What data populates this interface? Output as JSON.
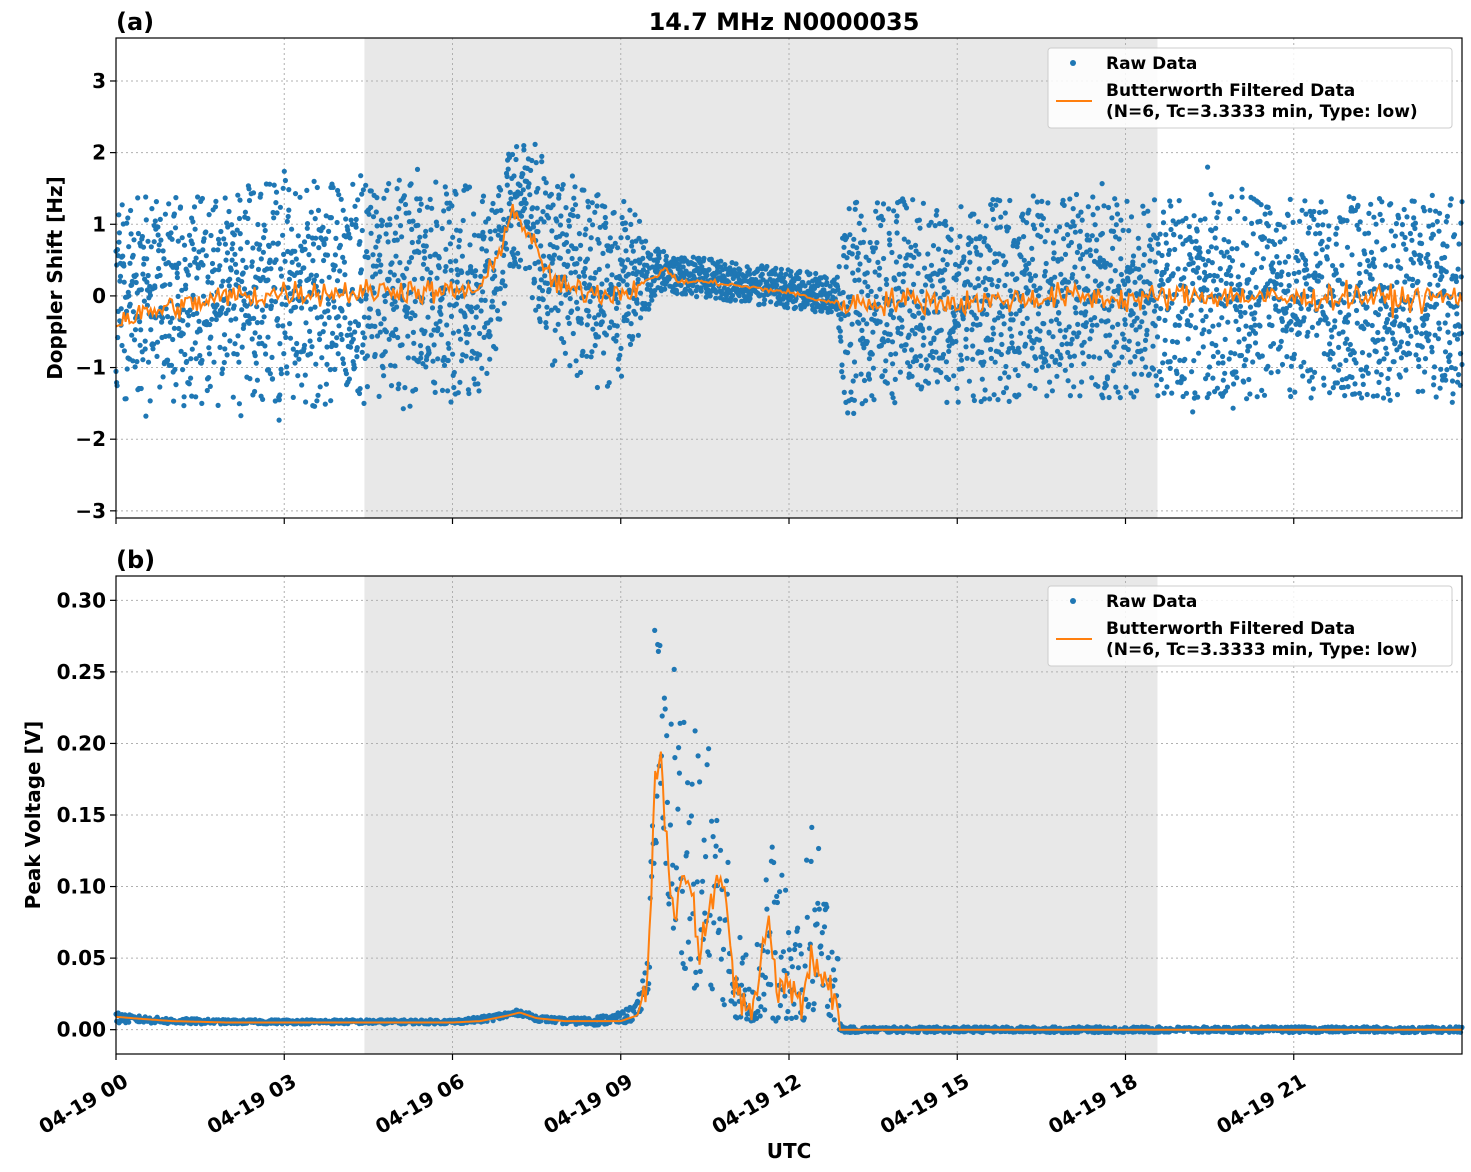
{
  "figure": {
    "title": "14.7 MHz N0000035",
    "xlabel": "UTC",
    "x_tick_labels": [
      "04-19 00",
      "04-19 03",
      "04-19 06",
      "04-19 09",
      "04-19 12",
      "04-19 15",
      "04-19 18",
      "04-19 21"
    ],
    "colors": {
      "raw": "#1f77b4",
      "filtered": "#ff7f0e",
      "shade": "#e8e8e8",
      "grid": "#b0b0b0"
    }
  },
  "chart_data": [
    {
      "type": "scatter",
      "panel_label": "(a)",
      "ylabel": "Doppler Shift [Hz]",
      "xlim": [
        "04-19 00:00",
        "04-20 00:00"
      ],
      "ylim": [
        -3.1,
        3.6
      ],
      "y_ticks": [
        -3,
        -2,
        -1,
        0,
        1,
        2,
        3
      ],
      "y_tick_labels": [
        "−3",
        "−2",
        "−1",
        "0",
        "1",
        "2",
        "3"
      ],
      "grid": true,
      "legend_position": "top-right",
      "shaded_interval_utc_hours": [
        4.43,
        18.57
      ],
      "series": [
        {
          "name": "Raw Data",
          "style": "points",
          "x_hours": [
            0,
            0.5,
            1,
            1.5,
            2,
            2.5,
            3,
            3.5,
            4,
            4.5,
            5,
            5.5,
            6,
            6.5,
            6.8,
            7,
            7.2,
            7.5,
            7.8,
            8,
            8.5,
            9,
            9.3,
            9.6,
            9.8,
            10,
            10.5,
            11,
            11.5,
            12,
            12.5,
            12.85,
            13,
            13.5,
            14,
            15,
            16,
            17,
            18,
            19,
            20,
            21,
            22,
            23,
            24
          ],
          "y_center": [
            0,
            -0.05,
            -0.1,
            -0.05,
            0,
            0,
            0.05,
            0.05,
            0,
            0.05,
            0.1,
            0.05,
            0.05,
            0.1,
            0.4,
            1.1,
            1.3,
            0.9,
            0.3,
            0.2,
            0.05,
            0.1,
            0.2,
            0.3,
            0.35,
            0.3,
            0.25,
            0.2,
            0.15,
            0.1,
            0.05,
            0,
            -0.1,
            -0.1,
            -0.05,
            -0.1,
            -0.05,
            0,
            -0.05,
            0,
            0,
            -0.05,
            0,
            -0.05,
            0
          ],
          "y_spread": [
            2.6,
            2.6,
            2.7,
            2.8,
            2.8,
            2.8,
            2.9,
            2.9,
            2.9,
            2.8,
            2.8,
            2.8,
            2.8,
            2.6,
            2.0,
            1.6,
            1.6,
            2.2,
            2.6,
            2.6,
            2.6,
            2.3,
            1.7,
            0.6,
            0.5,
            0.5,
            0.5,
            0.5,
            0.5,
            0.5,
            0.5,
            0.5,
            2.6,
            2.6,
            2.6,
            2.6,
            2.6,
            2.6,
            2.6,
            2.6,
            2.6,
            2.6,
            2.6,
            2.6,
            2.6
          ]
        },
        {
          "name": "Butterworth Filtered Data\n(N=6, Tc=3.3333 min, Type: low)",
          "style": "line",
          "x_hours": [
            0,
            0.5,
            1,
            1.5,
            2,
            2.5,
            3,
            3.5,
            4,
            4.5,
            5,
            5.5,
            6,
            6.5,
            6.8,
            7,
            7.2,
            7.5,
            7.8,
            8,
            8.5,
            9,
            9.3,
            9.6,
            9.8,
            10,
            10.5,
            11,
            11.5,
            12,
            12.5,
            12.85,
            13,
            13.5,
            14,
            15,
            16,
            17,
            18,
            19,
            20,
            21,
            22,
            23,
            24
          ],
          "y": [
            -0.35,
            -0.25,
            -0.15,
            -0.1,
            0,
            0,
            0.05,
            0.05,
            0.05,
            0.05,
            0.1,
            0.05,
            0.05,
            0.1,
            0.5,
            1.15,
            1.1,
            0.6,
            0.2,
            0.1,
            0.05,
            0.05,
            0.15,
            0.25,
            0.4,
            0.2,
            0.2,
            0.15,
            0.1,
            0.05,
            -0.05,
            -0.1,
            -0.1,
            -0.1,
            -0.05,
            -0.1,
            -0.05,
            0,
            -0.05,
            0,
            0,
            -0.05,
            0,
            -0.05,
            0
          ]
        }
      ],
      "legend_entries": [
        "Raw Data",
        "Butterworth Filtered Data",
        "(N=6, Tc=3.3333 min, Type: low)"
      ]
    },
    {
      "type": "scatter",
      "panel_label": "(b)",
      "ylabel": "Peak Voltage [V]",
      "xlim": [
        "04-19 00:00",
        "04-20 00:00"
      ],
      "ylim": [
        -0.017,
        0.317
      ],
      "y_ticks": [
        0,
        0.05,
        0.1,
        0.15,
        0.2,
        0.25,
        0.3
      ],
      "y_tick_labels": [
        "0.00",
        "0.05",
        "0.10",
        "0.15",
        "0.20",
        "0.25",
        "0.30"
      ],
      "grid": true,
      "legend_position": "top-right",
      "shaded_interval_utc_hours": [
        4.43,
        18.57
      ],
      "series": [
        {
          "name": "Raw Data",
          "style": "points",
          "x_hours": [
            0,
            0.3,
            1,
            2,
            3,
            4,
            5,
            6,
            6.5,
            7,
            7.2,
            7.5,
            8,
            8.5,
            9,
            9.3,
            9.5,
            9.6,
            9.7,
            9.8,
            10,
            10.2,
            10.4,
            10.6,
            10.8,
            11,
            11.2,
            11.4,
            11.6,
            11.8,
            12,
            12.2,
            12.4,
            12.6,
            12.85,
            12.9,
            13,
            14,
            16,
            18,
            20,
            22,
            24
          ],
          "y_low": [
            0.004,
            0.005,
            0.004,
            0.004,
            0.004,
            0.004,
            0.004,
            0.004,
            0.005,
            0.008,
            0.01,
            0.006,
            0.004,
            0.003,
            0.004,
            0.006,
            0.03,
            0.12,
            0.14,
            0.1,
            0.05,
            0.04,
            0.02,
            0.03,
            0.02,
            0.008,
            0.008,
            0.005,
            0.01,
            0.005,
            0.008,
            0.005,
            0.01,
            0.015,
            0.005,
            0,
            -0.002,
            -0.002,
            -0.002,
            -0.002,
            -0.002,
            -0.002,
            -0.002
          ],
          "y_high": [
            0.012,
            0.01,
            0.008,
            0.007,
            0.007,
            0.007,
            0.007,
            0.007,
            0.009,
            0.013,
            0.014,
            0.01,
            0.008,
            0.009,
            0.012,
            0.02,
            0.06,
            0.3,
            0.28,
            0.24,
            0.28,
            0.23,
            0.2,
            0.21,
            0.16,
            0.09,
            0.06,
            0.05,
            0.15,
            0.12,
            0.09,
            0.07,
            0.16,
            0.11,
            0.1,
            0.005,
            0.002,
            0.002,
            0.002,
            0.002,
            0.002,
            0.002,
            0.002
          ]
        },
        {
          "name": "Butterworth Filtered Data\n(N=6, Tc=3.3333 min, Type: low)",
          "style": "line",
          "x_hours": [
            0,
            0.3,
            1,
            2,
            3,
            4,
            5,
            6,
            6.5,
            7,
            7.2,
            7.5,
            8,
            8.5,
            9,
            9.3,
            9.5,
            9.6,
            9.7,
            9.8,
            10,
            10.2,
            10.4,
            10.6,
            10.8,
            11,
            11.2,
            11.4,
            11.6,
            11.8,
            12,
            12.2,
            12.4,
            12.6,
            12.85,
            12.9,
            13,
            14,
            16,
            18,
            20,
            22,
            24
          ],
          "y": [
            0.009,
            0.008,
            0.006,
            0.005,
            0.005,
            0.005,
            0.005,
            0.005,
            0.006,
            0.01,
            0.012,
            0.008,
            0.006,
            0.006,
            0.006,
            0.01,
            0.04,
            0.18,
            0.2,
            0.13,
            0.08,
            0.12,
            0.06,
            0.09,
            0.11,
            0.03,
            0.02,
            0.015,
            0.08,
            0.025,
            0.035,
            0.02,
            0.05,
            0.04,
            0.02,
            0,
            0,
            0,
            0,
            0,
            0,
            0,
            0
          ]
        }
      ],
      "legend_entries": [
        "Raw Data",
        "Butterworth Filtered Data",
        "(N=6, Tc=3.3333 min, Type: low)"
      ]
    }
  ]
}
